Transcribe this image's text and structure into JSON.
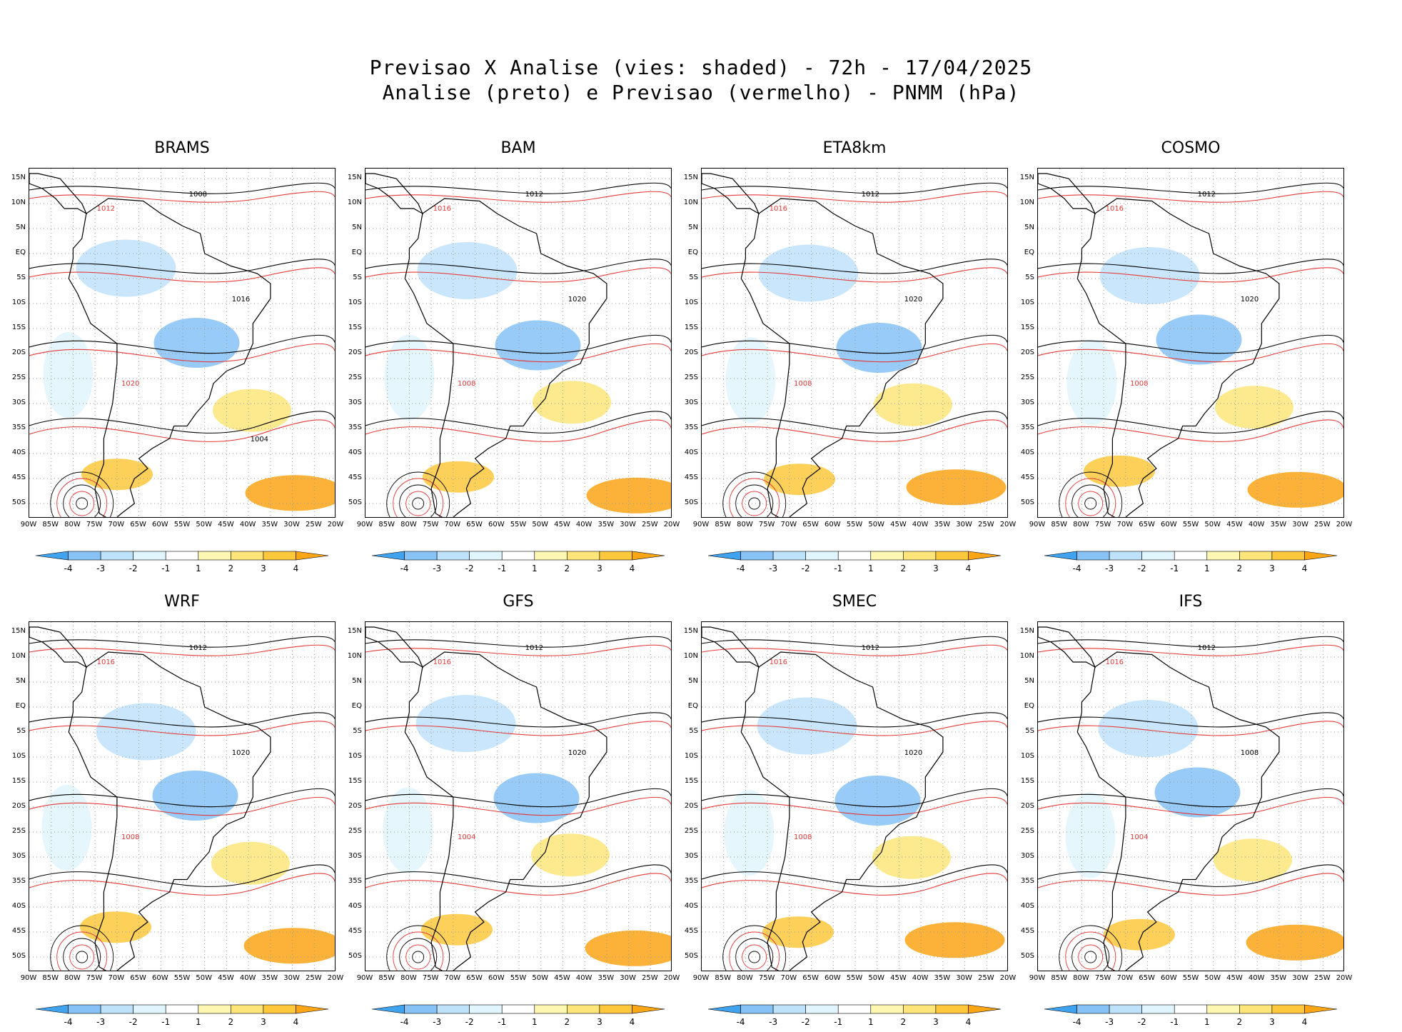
{
  "title": {
    "line1": "Previsao X Analise (vies: shaded) - 72h - 17/04/2025",
    "line2": "Analise (preto) e Previsao (vermelho) - PNMM (hPa)"
  },
  "lat_labels": [
    "15N",
    "10N",
    "5N",
    "EQ",
    "5S",
    "10S",
    "15S",
    "20S",
    "25S",
    "30S",
    "35S",
    "40S",
    "45S",
    "50S"
  ],
  "lon_labels": [
    "90W",
    "85W",
    "80W",
    "75W",
    "70W",
    "65W",
    "60W",
    "55W",
    "50W",
    "45W",
    "40W",
    "35W",
    "30W",
    "25W",
    "20W"
  ],
  "colorbar": {
    "ticks": [
      "-4",
      "-3",
      "-2",
      "-1",
      "1",
      "2",
      "3",
      "4"
    ],
    "colors": [
      "#3fa3f0",
      "#86c2f6",
      "#bfe2fb",
      "#e0f5fd",
      "#ffffff",
      "#fdf7b2",
      "#fde57a",
      "#fdc83c",
      "#fca515"
    ]
  },
  "colors": {
    "analysis_contour": "#000000",
    "forecast_contour": "#e23a3a",
    "coast": "#000000"
  },
  "panels": [
    {
      "name": "BRAMS",
      "labels": [
        "1008",
        "1012",
        "1016",
        "1020",
        "1004"
      ]
    },
    {
      "name": "BAM",
      "labels": [
        "1012",
        "1016",
        "1020",
        "1008"
      ]
    },
    {
      "name": "ETA8km",
      "labels": [
        "1012",
        "1016",
        "1020",
        "1008"
      ]
    },
    {
      "name": "COSMO",
      "labels": [
        "1012",
        "1016",
        "1020",
        "1008"
      ]
    },
    {
      "name": "WRF",
      "labels": [
        "1012",
        "1016",
        "1020",
        "1008"
      ]
    },
    {
      "name": "GFS",
      "labels": [
        "1012",
        "1016",
        "1020",
        "1004"
      ]
    },
    {
      "name": "SMEC",
      "labels": [
        "1012",
        "1016",
        "1020",
        "1008"
      ]
    },
    {
      "name": "IFS",
      "labels": [
        "1012",
        "1016",
        "1008",
        "1004"
      ]
    }
  ]
}
